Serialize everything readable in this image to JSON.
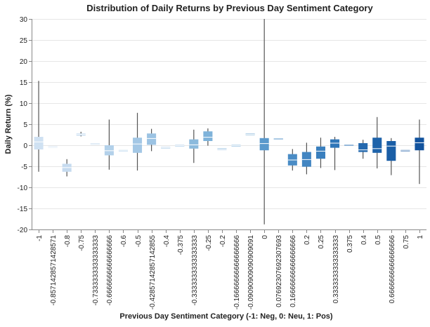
{
  "chart_data": {
    "type": "boxplot",
    "title": "Distribution of Daily Returns by Previous Day Sentiment Category",
    "xlabel": "Previous Day Sentiment Category (-1: Neg, 0: Neu, 1: Pos)",
    "ylabel": "Daily Return (%)",
    "ylim": [
      -20,
      30
    ],
    "yticks": [
      -20,
      -15,
      -10,
      -5,
      0,
      5,
      10,
      15,
      20,
      25,
      30
    ],
    "grid": true,
    "legend": "none",
    "categories": [
      "-1",
      "-0.8571428571428571",
      "-0.8",
      "-0.75",
      "-0.7333333333333333",
      "-0.6666666666666666",
      "-0.6",
      "-0.5",
      "-0.42857142857142855",
      "-0.4",
      "-0.375",
      "-0.3333333333333333",
      "-0.25",
      "-0.2",
      "-0.16666666666666666",
      "-0.09090909090909091",
      "0",
      "0.07692307692307693",
      "0.16666666666666666",
      "0.2",
      "0.25",
      "0.3333333333333333",
      "0.375",
      "0.4",
      "0.5",
      "0.6666666666666666",
      "0.75",
      "1"
    ],
    "tick_labels": [
      "-1",
      "-0.8571428571428571",
      "-0.8",
      "-0.75",
      "-0.7333333333333333",
      "-0.6666666666666666",
      "-0.6",
      "-0.5",
      "-0.42857142857142855",
      "-0.4",
      "-0.375",
      "-0.3333333333333333",
      "-0.25",
      "-0.2",
      "-0.16666666666666666",
      "-0.09090909090909091",
      "0",
      "0.07692307692307693",
      "0.16666666666666666",
      "0.2",
      "0.25",
      "0.3333333333333333",
      "0.375",
      "0.4",
      "0.5",
      "0.6666666666666666",
      "0.75",
      "1"
    ],
    "boxes": [
      {
        "min": -6.3,
        "q1": -1.0,
        "median": 0.8,
        "q3": 2.0,
        "max": 15.3,
        "color": "#cfe1f2"
      },
      {
        "min": -0.4,
        "q1": -0.4,
        "median": -0.4,
        "q3": -0.4,
        "max": -0.4,
        "color": "#cfe1f2"
      },
      {
        "min": -7.4,
        "q1": -6.3,
        "median": -5.3,
        "q3": -4.4,
        "max": -3.3,
        "color": "#c6dbef"
      },
      {
        "min": 2.1,
        "q1": 2.3,
        "median": 2.6,
        "q3": 2.8,
        "max": 3.2,
        "color": "#c1d9ee"
      },
      {
        "min": 0.3,
        "q1": 0.3,
        "median": 0.3,
        "q3": 0.3,
        "max": 0.3,
        "color": "#bcd6ec"
      },
      {
        "min": -5.8,
        "q1": -2.4,
        "median": -1.3,
        "q3": 0.0,
        "max": 6.1,
        "color": "#b3d1ea"
      },
      {
        "min": -1.3,
        "q1": -1.3,
        "median": -1.3,
        "q3": -1.3,
        "max": -1.3,
        "color": "#abcce8"
      },
      {
        "min": -6.0,
        "q1": -1.8,
        "median": 0.3,
        "q3": 1.8,
        "max": 7.7,
        "color": "#a3c7e5"
      },
      {
        "min": -1.4,
        "q1": 0.1,
        "median": 1.6,
        "q3": 2.8,
        "max": 3.9,
        "color": "#9cc3e3"
      },
      {
        "min": -0.6,
        "q1": -0.6,
        "median": -0.6,
        "q3": -0.6,
        "max": -0.6,
        "color": "#98c0e1"
      },
      {
        "min": -0.1,
        "q1": -0.1,
        "median": -0.1,
        "q3": -0.1,
        "max": -0.1,
        "color": "#93bee0"
      },
      {
        "min": -4.2,
        "q1": -0.8,
        "median": 0.1,
        "q3": 1.4,
        "max": 3.7,
        "color": "#8bbadd"
      },
      {
        "min": -0.1,
        "q1": 1.0,
        "median": 1.9,
        "q3": 3.3,
        "max": 4.0,
        "color": "#7fb3da"
      },
      {
        "min": -0.9,
        "q1": -0.9,
        "median": -0.9,
        "q3": -0.9,
        "max": -0.9,
        "color": "#7aafd8"
      },
      {
        "min": -0.1,
        "q1": -0.1,
        "median": -0.1,
        "q3": -0.1,
        "max": -0.1,
        "color": "#72a9d5"
      },
      {
        "min": 2.6,
        "q1": 2.6,
        "median": 2.6,
        "q3": 2.6,
        "max": 2.6,
        "color": "#68a2d1"
      },
      {
        "min": -18.8,
        "q1": -1.2,
        "median": 0.4,
        "q3": 1.7,
        "max": 30.0,
        "color": "#5a99cc"
      },
      {
        "min": 1.5,
        "q1": 1.5,
        "median": 1.5,
        "q3": 1.5,
        "max": 1.5,
        "color": "#5393c9"
      },
      {
        "min": -6.0,
        "q1": -4.8,
        "median": -3.5,
        "q3": -2.1,
        "max": -0.9,
        "color": "#4a8cc5"
      },
      {
        "min": -6.9,
        "q1": -5.1,
        "median": -3.4,
        "q3": -1.6,
        "max": 0.6,
        "color": "#4386c2"
      },
      {
        "min": -5.4,
        "q1": -3.2,
        "median": -1.4,
        "q3": -0.3,
        "max": 1.8,
        "color": "#3a7fbe"
      },
      {
        "min": -5.9,
        "q1": -0.6,
        "median": 0.5,
        "q3": 1.4,
        "max": 2.0,
        "color": "#2f76b8"
      },
      {
        "min": 0.0,
        "q1": 0.0,
        "median": 0.0,
        "q3": 0.0,
        "max": 0.0,
        "color": "#2b72b5"
      },
      {
        "min": -3.2,
        "q1": -1.6,
        "median": -1.1,
        "q3": 0.5,
        "max": 1.3,
        "color": "#2569ae"
      },
      {
        "min": -5.5,
        "q1": -1.8,
        "median": -0.8,
        "q3": 1.8,
        "max": 6.7,
        "color": "#1e63aa"
      },
      {
        "min": -7.1,
        "q1": -3.7,
        "median": -0.2,
        "q3": 1.0,
        "max": 1.7,
        "color": "#1a5ea6"
      },
      {
        "min": -1.3,
        "q1": -1.3,
        "median": -1.3,
        "q3": -1.3,
        "max": -1.3,
        "color": "#1859a2"
      },
      {
        "min": -9.2,
        "q1": -1.2,
        "median": 0.6,
        "q3": 1.8,
        "max": 6.1,
        "color": "#12539e"
      }
    ]
  }
}
